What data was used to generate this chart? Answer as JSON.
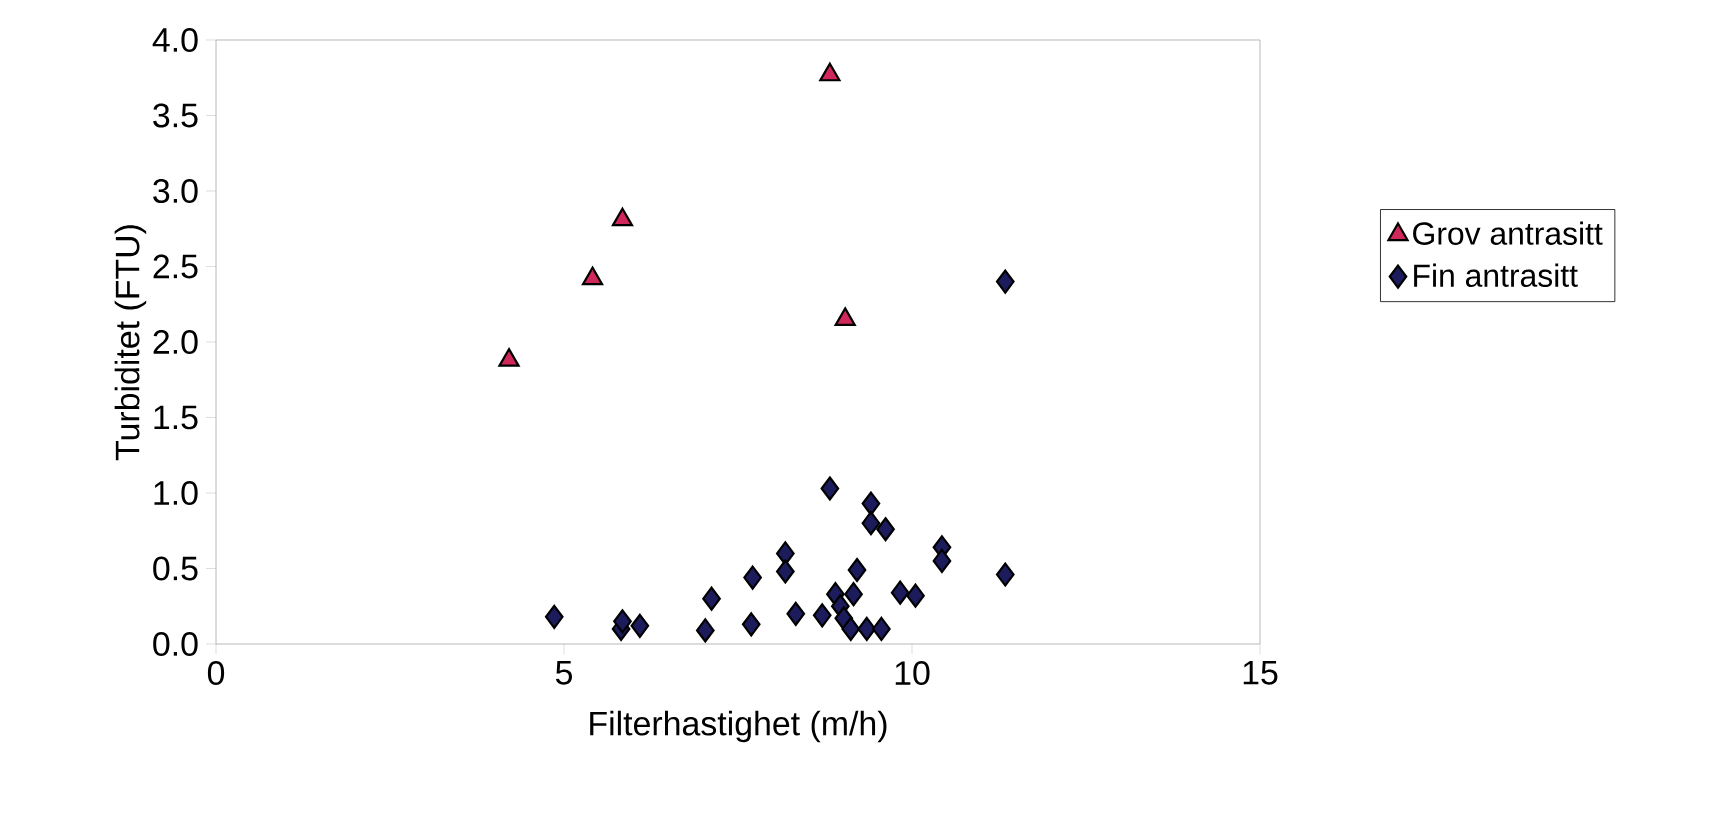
{
  "chart_data": {
    "type": "scatter",
    "xlabel": "Filterhastighet (m/h)",
    "ylabel": "Turbiditet (FTU)",
    "xlim": [
      0,
      15
    ],
    "ylim": [
      0,
      4
    ],
    "xticks": [
      0,
      5,
      10,
      15
    ],
    "yticks": [
      {
        "value": 0,
        "label": "0.0"
      },
      {
        "value": 0.5,
        "label": "0.5"
      },
      {
        "value": 1,
        "label": "1.0"
      },
      {
        "value": 1.5,
        "label": "1.5"
      },
      {
        "value": 2,
        "label": "2.0"
      },
      {
        "value": 2.5,
        "label": "2.5"
      },
      {
        "value": 3,
        "label": "3.0"
      },
      {
        "value": 3.5,
        "label": "3.5"
      },
      {
        "value": 4,
        "label": "4.0"
      }
    ],
    "legend": "right",
    "series": [
      {
        "name": "Grov antrasitt",
        "color": "#d0285a",
        "marker": "triangle",
        "x": [
          4.21,
          5.41,
          5.84,
          8.82,
          9.04
        ],
        "values": [
          1.88,
          2.42,
          2.81,
          3.77,
          2.15
        ]
      },
      {
        "name": "Fin antrasitt",
        "color": "#1c1c5c",
        "marker": "diamond",
        "x": [
          11.34,
          8.82,
          9.41,
          9.41,
          9.62,
          8.18,
          8.18,
          7.71,
          9.21,
          10.43,
          10.43,
          11.34,
          7.12,
          9.83,
          10.05,
          8.9,
          9.16,
          4.86,
          5.82,
          5.84,
          6.09,
          7.03,
          7.69,
          8.33,
          8.71,
          8.97,
          9.02,
          9.12,
          9.35,
          9.56
        ],
        "values": [
          2.4,
          1.03,
          0.93,
          0.8,
          0.76,
          0.6,
          0.48,
          0.44,
          0.49,
          0.64,
          0.55,
          0.46,
          0.3,
          0.34,
          0.32,
          0.33,
          0.33,
          0.18,
          0.1,
          0.15,
          0.12,
          0.09,
          0.13,
          0.2,
          0.19,
          0.25,
          0.17,
          0.1,
          0.1,
          0.1
        ]
      }
    ]
  }
}
